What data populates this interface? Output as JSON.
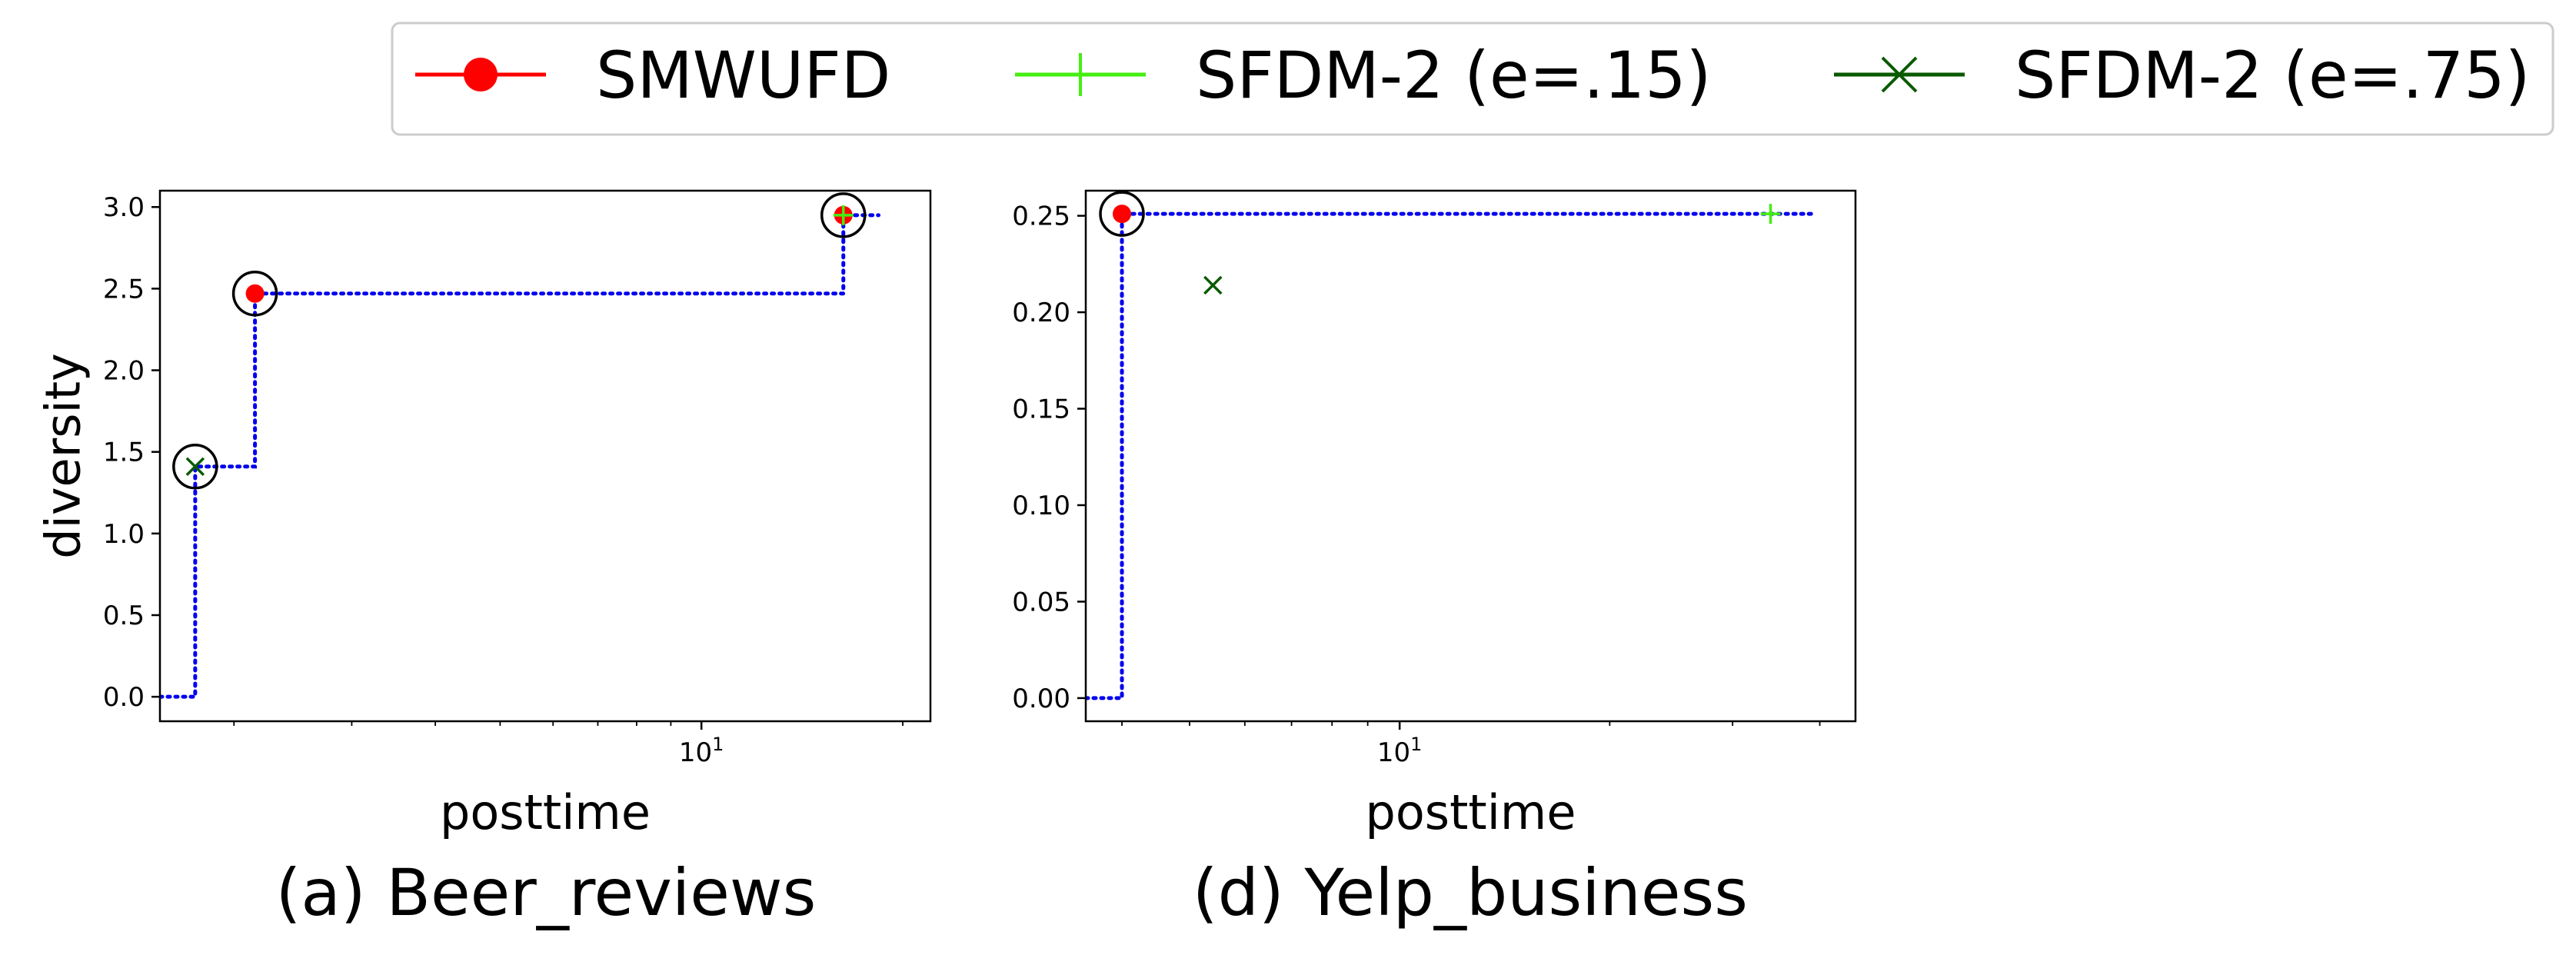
{
  "legend": {
    "items": [
      {
        "label": "SMWUFD",
        "color": "#ff0000",
        "marker": "filled-circle"
      },
      {
        "label": "SFDM-2 (e=.15)",
        "color": "#44ee11",
        "marker": "plus"
      },
      {
        "label": "SFDM-2 (e=.75)",
        "color": "#0a5a00",
        "marker": "x-cross"
      }
    ],
    "placement": "top"
  },
  "chart_data": [
    {
      "type": "scatter",
      "caption": "(a) Beer_reviews",
      "xlabel": "posttime",
      "ylabel": "diversity",
      "xscale": "log",
      "xlim": [
        1.55,
        22
      ],
      "ylim": [
        -0.15,
        3.1
      ],
      "xticks": [
        10
      ],
      "xtick_labels": [
        "10^1"
      ],
      "yticks": [
        0,
        0.5,
        1,
        1.5,
        2,
        2.5,
        3
      ],
      "ytick_labels": [
        "0.0",
        "0.5",
        "1.0",
        "1.5",
        "2.0",
        "2.5",
        "3.0"
      ],
      "series": [
        {
          "name": "SMWUFD",
          "points": [
            {
              "x": 2.15,
              "y": 2.47
            },
            {
              "x": 16.3,
              "y": 2.95
            }
          ]
        },
        {
          "name": "SFDM-2 (e=.15)",
          "points": [
            {
              "x": 16.3,
              "y": 2.95
            }
          ]
        },
        {
          "name": "SFDM-2 (e=.75)",
          "points": [
            {
              "x": 1.75,
              "y": 1.41
            }
          ]
        }
      ],
      "pareto_circles": [
        {
          "x": 1.75,
          "y": 1.41
        },
        {
          "x": 2.15,
          "y": 2.47
        },
        {
          "x": 16.3,
          "y": 2.95
        }
      ],
      "pareto_front": [
        [
          1.55,
          0
        ],
        [
          1.75,
          0
        ],
        [
          1.75,
          1.41
        ],
        [
          2.15,
          1.41
        ],
        [
          2.15,
          2.47
        ],
        [
          16.3,
          2.47
        ],
        [
          16.3,
          2.95
        ],
        [
          18.4,
          2.95
        ]
      ]
    },
    {
      "type": "scatter",
      "caption": "(d) Yelp_business",
      "xlabel": "posttime",
      "ylabel": "",
      "xscale": "log",
      "xlim": [
        3.55,
        45
      ],
      "ylim": [
        -0.012,
        0.263
      ],
      "xticks": [
        10
      ],
      "xtick_labels": [
        "10^1"
      ],
      "yticks": [
        0,
        0.05,
        0.1,
        0.15,
        0.2,
        0.25
      ],
      "ytick_labels": [
        "0.00",
        "0.05",
        "0.10",
        "0.15",
        "0.20",
        "0.25"
      ],
      "series": [
        {
          "name": "SMWUFD",
          "points": [
            {
              "x": 4.0,
              "y": 0.251
            }
          ]
        },
        {
          "name": "SFDM-2 (e=.15)",
          "points": [
            {
              "x": 34.0,
              "y": 0.251
            }
          ]
        },
        {
          "name": "SFDM-2 (e=.75)",
          "points": [
            {
              "x": 5.4,
              "y": 0.214
            }
          ]
        }
      ],
      "pareto_circles": [
        {
          "x": 4.0,
          "y": 0.251
        }
      ],
      "pareto_front": [
        [
          3.55,
          0
        ],
        [
          4.0,
          0
        ],
        [
          4.0,
          0.251
        ],
        [
          39.5,
          0.251
        ]
      ]
    }
  ]
}
